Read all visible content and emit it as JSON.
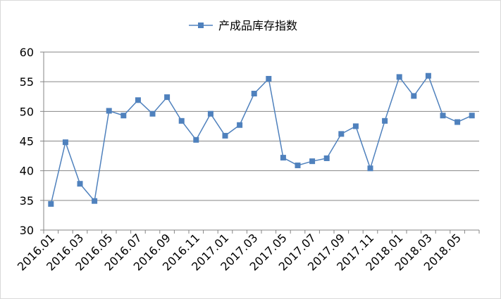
{
  "chart_data": {
    "type": "line",
    "title": "",
    "xlabel": "",
    "ylabel": "",
    "ylim": [
      30,
      60
    ],
    "yticks": [
      30,
      35,
      40,
      45,
      50,
      55,
      60
    ],
    "grid": true,
    "legend_position": "top",
    "categories": [
      "2016.01",
      "2016.02",
      "2016.03",
      "2016.04",
      "2016.05",
      "2016.06",
      "2016.07",
      "2016.08",
      "2016.09",
      "2016.10",
      "2016.11",
      "2016.12",
      "2017.01",
      "2017.02",
      "2017.03",
      "2017.04",
      "2017.05",
      "2017.06",
      "2017.07",
      "2017.08",
      "2017.09",
      "2017.10",
      "2017.11",
      "2017.12",
      "2018.01",
      "2018.02",
      "2018.03",
      "2018.04",
      "2018.05",
      "2018.06"
    ],
    "xtick_labels": [
      "2016.01",
      "2016.03",
      "2016.05",
      "2016.07",
      "2016.09",
      "2016.11",
      "2017.01",
      "2017.03",
      "2017.05",
      "2017.07",
      "2017.09",
      "2017.11",
      "2018.01",
      "2018.03",
      "2018.05"
    ],
    "series": [
      {
        "name": "产成品库存指数",
        "color": "#4f81bd",
        "values": [
          34.4,
          44.8,
          37.8,
          34.9,
          50.1,
          49.3,
          51.9,
          49.6,
          52.4,
          48.4,
          45.2,
          49.6,
          45.9,
          47.7,
          53.0,
          55.5,
          42.2,
          40.9,
          41.6,
          42.1,
          46.2,
          47.5,
          40.4,
          48.4,
          55.8,
          52.6,
          56.0,
          49.3,
          48.2,
          49.3
        ]
      }
    ]
  }
}
